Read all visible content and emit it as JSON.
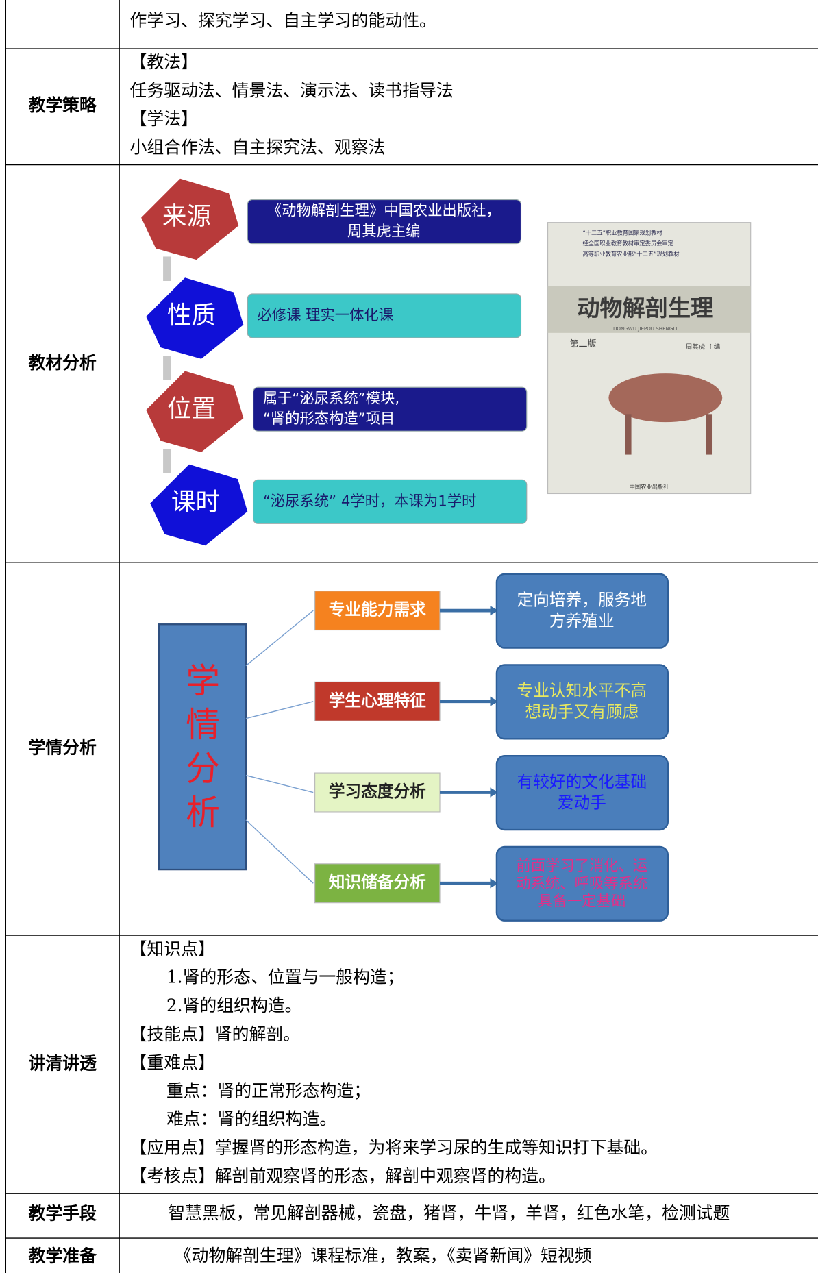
{
  "table": {
    "rows": [
      {
        "content": [
          "作学习、探究学习、自主学习的能动性。"
        ]
      },
      {
        "label": "教学策略",
        "content": [
          "【教法】",
          "任务驱动法、情景法、演示法、读书指导法",
          "【学法】",
          "小组合作法、自主探究法、观察法"
        ]
      },
      {
        "label": "教材分析",
        "material": {
          "items": [
            {
              "heading": "来源",
              "text": [
                "《动物解剖生理》中国农业出版社，",
                "周其虎主编"
              ]
            },
            {
              "heading": "性质",
              "text": [
                "必修课 理实一体化课"
              ]
            },
            {
              "heading": "位置",
              "text": [
                "属于“泌尿系统”模块,",
                "“肾的形态构造”项目"
              ]
            },
            {
              "heading": "课时",
              "text": [
                "“泌尿系统” 4学时，本课为1学时"
              ]
            }
          ],
          "book": {
            "series": [
              "“十二五”职业教育国家规划教材",
              "经全国职业教育教材审定委员会审定",
              "高等职业教育农业部“十二五”规划教材"
            ],
            "title": "动物解剖生理",
            "pinyin": "DONGWU JIEPOU SHENGLI",
            "edition": "第二版",
            "editor": "周其虎 主编",
            "publisher": "中国农业出版社"
          }
        }
      },
      {
        "label": "学情分析",
        "learner": {
          "center": [
            "学",
            "情",
            "分",
            "析"
          ],
          "aspects": [
            {
              "heading": "专业能力需求",
              "detail": [
                "定向培养，服务地",
                "方养殖业"
              ],
              "color": "#f5821f",
              "text_color": "#ffffff"
            },
            {
              "heading": "学生心理特征",
              "detail": [
                "专业认知水平不高",
                "想动手又有顾虑"
              ],
              "color": "#c0392b",
              "text_color": "#e8e860"
            },
            {
              "heading": "学习态度分析",
              "detail": [
                "有较好的文化基础",
                "爱动手"
              ],
              "color": "#e4f4c4",
              "text_color": "#1a1aff"
            },
            {
              "heading": "知识储备分析",
              "detail": [
                "前面学习了消化、运",
                "动系统、呼吸等系统",
                "具备一定基础"
              ],
              "color": "#7cb342",
              "text_color": "#e0308a"
            }
          ]
        }
      },
      {
        "label": "讲清讲透",
        "content": [
          {
            "heading": "【知识点】",
            "items": [
              "1.肾的形态、位置与一般构造；",
              "2.肾的组织构造。"
            ]
          },
          {
            "heading": "【技能点】",
            "text": "肾的解剖。"
          },
          {
            "heading": "【重难点】",
            "items": [
              "重点：肾的正常形态构造；",
              "难点：肾的组织构造。"
            ]
          },
          {
            "heading": "【应用点】",
            "text": "掌握肾的形态构造，为将来学习尿的生成等知识打下基础。"
          },
          {
            "heading": "【考核点】",
            "text": "解剖前观察肾的形态，解剖中观察肾的构造。"
          }
        ]
      },
      {
        "label": "教学手段",
        "content": [
          "智慧黑板，常见解剖器械，瓷盘，猪肾，牛肾，羊肾，红色水笔，检测试题"
        ]
      },
      {
        "label": "教学准备",
        "content": [
          "《动物解剖生理》课程标准，教案，《卖肾新闻》短视频"
        ]
      }
    ]
  }
}
